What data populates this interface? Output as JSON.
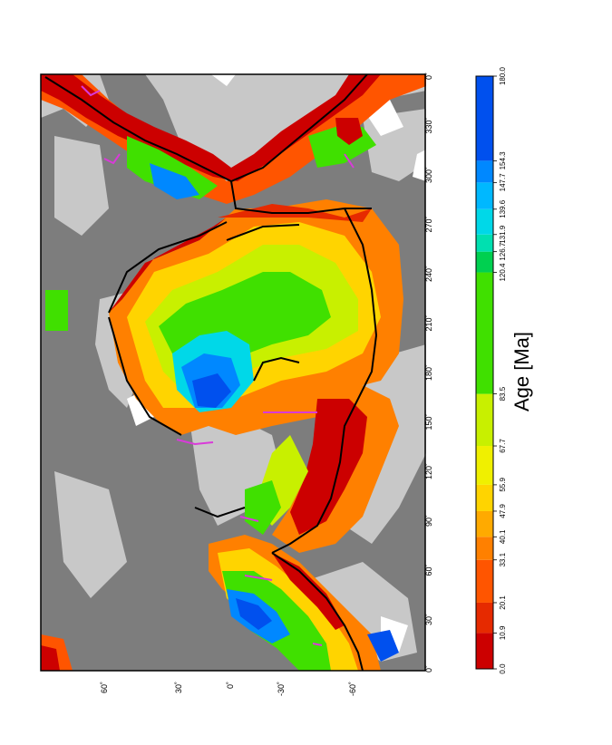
{
  "map": {
    "x_axis_ticks": [
      "0˚",
      "30˚",
      "60˚",
      "90˚",
      "120˚",
      "150˚",
      "180˚",
      "210˚",
      "240˚",
      "270˚",
      "300˚",
      "330˚",
      "0˚"
    ],
    "y_axis_ticks": [
      "60˚",
      "30˚",
      "0˚",
      "-30˚",
      "-60˚"
    ],
    "colors": {
      "land_dark": "#7d7d7d",
      "shelf_light": "#c8c8c8",
      "ocean_white": "#ffffff",
      "ridge_line": "#000000",
      "seamount": "#d93ad9"
    }
  },
  "colorbar": {
    "title": "Age [Ma]",
    "ticks": [
      "0.0",
      "10.9",
      "20.1",
      "33.1",
      "40.1",
      "47.9",
      "55.9",
      "67.7",
      "83.5",
      "120.4",
      "126.7",
      "131.9",
      "139.6",
      "147.7",
      "154.3",
      "180.0"
    ],
    "colors": [
      "#cc0000",
      "#e62a00",
      "#ff5500",
      "#ff8000",
      "#ffaa00",
      "#ffd400",
      "#f0f000",
      "#c8f000",
      "#40e000",
      "#00d050",
      "#00e0b0",
      "#00d8e8",
      "#00b8ff",
      "#0088ff",
      "#0050ee"
    ]
  }
}
